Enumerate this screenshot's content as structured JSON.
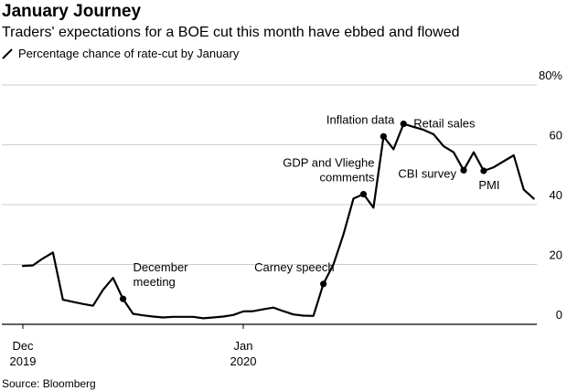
{
  "header": {
    "title": "January Journey",
    "subtitle": "Traders' expectations for a BOE cut this month have ebbed and flowed"
  },
  "legend": {
    "label": "Percentage chance of rate-cut by January"
  },
  "footer": {
    "source": "Source: Bloomberg"
  },
  "colors": {
    "line": "#000000",
    "grid": "#cccccc",
    "baseline": "#000000"
  },
  "chart_data": {
    "type": "line",
    "title": "January Journey",
    "subtitle": "Traders' expectations for a BOE cut this month have ebbed and flowed",
    "xlabel": "",
    "ylabel": "",
    "y_unit_label": "80%",
    "ylim": [
      0,
      80
    ],
    "y_ticks": [
      0,
      20,
      40,
      60,
      80
    ],
    "y_tick_labels": [
      "0",
      "20",
      "40",
      "60",
      "80%"
    ],
    "grid": true,
    "legend_position": "top-left",
    "x_range_days": [
      0,
      53
    ],
    "x_ticks": [
      {
        "day": 0,
        "line1": "Dec",
        "line2": "2019"
      },
      {
        "day": 22,
        "line1": "Jan",
        "line2": "2020"
      }
    ],
    "series": [
      {
        "name": "Percentage chance of rate-cut by January",
        "points": [
          [
            0,
            19.5
          ],
          [
            1,
            19.7
          ],
          [
            2,
            22
          ],
          [
            3,
            24
          ],
          [
            4,
            8.2
          ],
          [
            5,
            7.5
          ],
          [
            6,
            6.8
          ],
          [
            7,
            6.2
          ],
          [
            8,
            11.5
          ],
          [
            9,
            15.5
          ],
          [
            10,
            8.5
          ],
          [
            11,
            3.5
          ],
          [
            12,
            3
          ],
          [
            13,
            2.6
          ],
          [
            14,
            2.3
          ],
          [
            15,
            2.5
          ],
          [
            16,
            2.5
          ],
          [
            17,
            2.5
          ],
          [
            18,
            2
          ],
          [
            19,
            2.3
          ],
          [
            20,
            2.6
          ],
          [
            21,
            3.1
          ],
          [
            22,
            4.3
          ],
          [
            23,
            4.4
          ],
          [
            24,
            5
          ],
          [
            25,
            5.6
          ],
          [
            26,
            4.4
          ],
          [
            27,
            3.3
          ],
          [
            28,
            2.9
          ],
          [
            29,
            2.8
          ],
          [
            30,
            13.5
          ],
          [
            31,
            20
          ],
          [
            32,
            30
          ],
          [
            33,
            42
          ],
          [
            34,
            43.5
          ],
          [
            35,
            39
          ],
          [
            36,
            62.8
          ],
          [
            37,
            58.5
          ],
          [
            38,
            67
          ],
          [
            39,
            66
          ],
          [
            40,
            65
          ],
          [
            41,
            63.5
          ],
          [
            42,
            59.5
          ],
          [
            43,
            57.5
          ],
          [
            44,
            51.5
          ],
          [
            45,
            57.5
          ],
          [
            46,
            51.3
          ],
          [
            47,
            52.5
          ],
          [
            48,
            54.5
          ],
          [
            49,
            56.5
          ],
          [
            50,
            45
          ],
          [
            51,
            42
          ]
        ]
      }
    ],
    "annotations": [
      {
        "label": "December meeting",
        "lines": [
          "December",
          "meeting"
        ],
        "day": 10,
        "value": 8.5,
        "anchor": "right"
      },
      {
        "label": "Carney speech",
        "lines": [
          "Carney speech"
        ],
        "day": 30,
        "value": 13.5,
        "anchor": "above-left"
      },
      {
        "label": "GDP and Vlieghe comments",
        "lines": [
          "GDP and Vlieghe",
          "comments"
        ],
        "day": 34,
        "value": 43.5,
        "anchor": "above-left"
      },
      {
        "label": "Inflation data",
        "lines": [
          "Inflation data"
        ],
        "day": 36,
        "value": 62.8,
        "anchor": "above-left"
      },
      {
        "label": "Retail sales",
        "lines": [
          "Retail sales"
        ],
        "day": 38,
        "value": 67,
        "anchor": "right"
      },
      {
        "label": "CBI survey",
        "lines": [
          "CBI survey"
        ],
        "day": 44,
        "value": 51.5,
        "anchor": "left"
      },
      {
        "label": "PMI",
        "lines": [
          "PMI"
        ],
        "day": 46,
        "value": 51.3,
        "anchor": "below"
      }
    ]
  }
}
